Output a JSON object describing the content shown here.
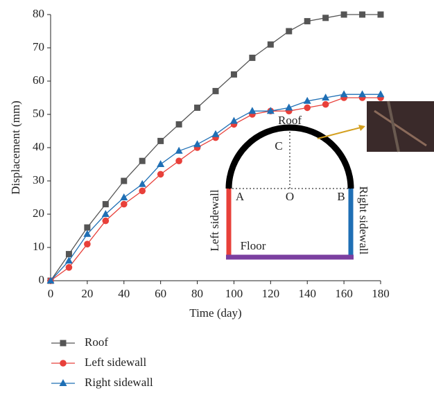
{
  "chart_data": {
    "type": "line",
    "x": [
      0,
      10,
      20,
      30,
      40,
      50,
      60,
      70,
      80,
      90,
      100,
      110,
      120,
      130,
      140,
      150,
      160,
      170,
      180
    ],
    "series": [
      {
        "name": "Roof",
        "color": "#555555",
        "marker": "square",
        "values": [
          0,
          8,
          16,
          23,
          30,
          36,
          42,
          47,
          52,
          57,
          62,
          67,
          71,
          75,
          78,
          79,
          80,
          80,
          80
        ]
      },
      {
        "name": "Left sidewall",
        "color": "#e8403a",
        "marker": "circle",
        "values": [
          0,
          4,
          11,
          18,
          23,
          27,
          32,
          36,
          40,
          43,
          47,
          50,
          51,
          51,
          52,
          53,
          55,
          55,
          55
        ]
      },
      {
        "name": "Right sidewall",
        "color": "#1f6fb5",
        "marker": "triangle",
        "values": [
          0,
          6,
          14,
          20,
          25,
          29,
          35,
          39,
          41,
          44,
          48,
          51,
          51,
          52,
          54,
          55,
          56,
          56,
          56
        ]
      }
    ],
    "xlabel": "Time (day)",
    "ylabel": "Displacement (mm)",
    "xlim": [
      0,
      180
    ],
    "ylim": [
      0,
      80
    ],
    "xticks": [
      0,
      20,
      40,
      60,
      80,
      100,
      120,
      140,
      160,
      180
    ],
    "yticks": [
      0,
      10,
      20,
      30,
      40,
      50,
      60,
      70,
      80
    ],
    "legend": "below",
    "annotations": [
      "Roof",
      "C",
      "A",
      "O",
      "B",
      "Left sidewall",
      "Floor",
      "Right sidewall"
    ]
  }
}
